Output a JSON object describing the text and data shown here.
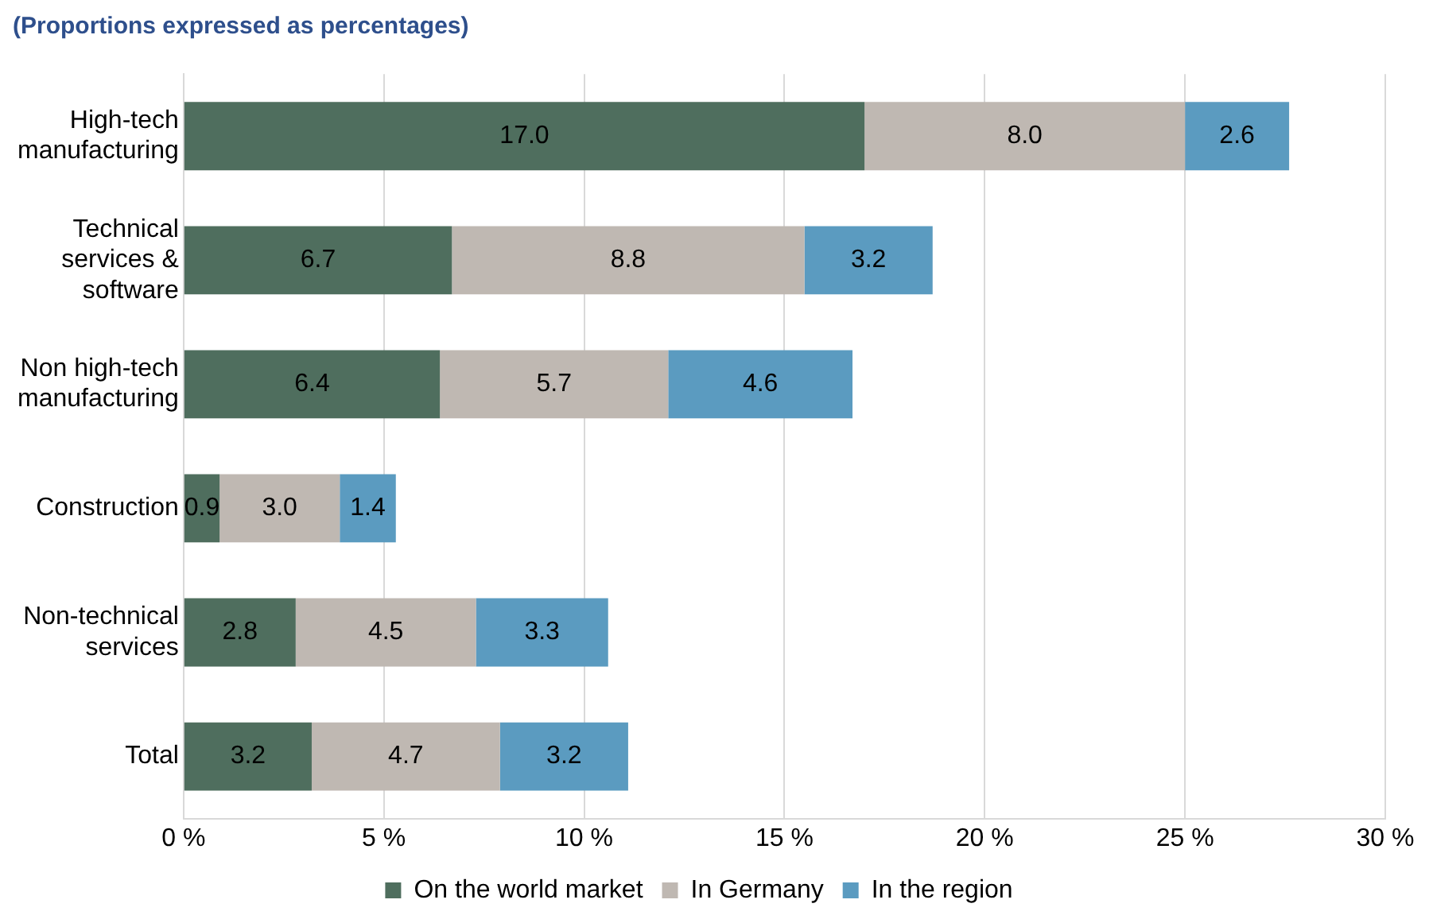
{
  "chart_data": {
    "type": "bar",
    "orientation": "horizontal",
    "stacked": true,
    "title": "(Proportions expressed as percentages)",
    "categories": [
      "High-tech manufacturing",
      "Technical services & software",
      "Non high-tech manufacturing",
      "Construction",
      "Non-technical services",
      "Total"
    ],
    "series": [
      {
        "name": "On the world market",
        "color": "#4f6e5e",
        "values": [
          17.0,
          6.7,
          6.4,
          0.9,
          2.8,
          3.2
        ],
        "value_labels": [
          "17.0",
          "6.7",
          "6.4",
          "0.9",
          "2.8",
          "3.2"
        ]
      },
      {
        "name": "In Germany",
        "color": "#bfb8b2",
        "values": [
          8.0,
          8.8,
          5.7,
          3.0,
          4.5,
          4.7
        ],
        "value_labels": [
          "8.0",
          "8.8",
          "5.7",
          "3.0",
          "4.5",
          "4.7"
        ]
      },
      {
        "name": "In the region",
        "color": "#5b9bc0",
        "values": [
          2.6,
          3.2,
          4.6,
          1.4,
          3.3,
          3.2
        ],
        "value_labels": [
          "2.6",
          "3.2",
          "4.6",
          "1.4",
          "3.3",
          "3.2"
        ]
      }
    ],
    "xlim": [
      0,
      30
    ],
    "xticks": [
      {
        "value": 0,
        "label": "0 %"
      },
      {
        "value": 5,
        "label": "5 %"
      },
      {
        "value": 10,
        "label": "10 %"
      },
      {
        "value": 15,
        "label": "15 %"
      },
      {
        "value": 20,
        "label": "20 %"
      },
      {
        "value": 25,
        "label": "25 %"
      },
      {
        "value": 30,
        "label": "30 %"
      }
    ],
    "grid": "x",
    "legend": "bottom"
  }
}
